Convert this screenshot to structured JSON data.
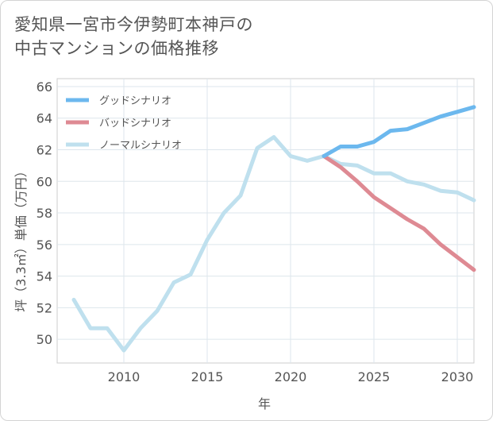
{
  "title_lines": [
    "愛知県一宮市今伊勢町本神戸の",
    "中古マンションの価格推移"
  ],
  "chart_data": {
    "type": "line",
    "xlabel": "年",
    "ylabel": "坪（3.3㎡）単価（万円）",
    "xlim": [
      2006,
      2031
    ],
    "ylim": [
      48.5,
      66.5
    ],
    "x_ticks": [
      2010,
      2015,
      2020,
      2025,
      2030
    ],
    "y_ticks": [
      50,
      52,
      54,
      56,
      58,
      60,
      62,
      64,
      66
    ],
    "grid": true,
    "legend_position": "top-left",
    "series": [
      {
        "name": "グッドシナリオ",
        "color": "#6cb8ee",
        "x": [
          2022,
          2023,
          2024,
          2025,
          2026,
          2027,
          2028,
          2029,
          2030,
          2031
        ],
        "y": [
          61.6,
          62.2,
          62.2,
          62.5,
          63.2,
          63.3,
          63.7,
          64.1,
          64.4,
          64.7
        ]
      },
      {
        "name": "バッドシナリオ",
        "color": "#de8a93",
        "x": [
          2022,
          2023,
          2024,
          2025,
          2026,
          2027,
          2028,
          2029,
          2030,
          2031
        ],
        "y": [
          61.6,
          60.9,
          60.0,
          59.0,
          58.3,
          57.6,
          57.0,
          56.0,
          55.2,
          54.4
        ]
      },
      {
        "name": "ノーマルシナリオ",
        "color": "#bfe0ee",
        "x": [
          2007,
          2008,
          2009,
          2010,
          2011,
          2012,
          2013,
          2014,
          2015,
          2016,
          2017,
          2018,
          2019,
          2020,
          2021,
          2022,
          2023,
          2024,
          2025,
          2026,
          2027,
          2028,
          2029,
          2030,
          2031
        ],
        "y": [
          52.5,
          50.7,
          50.7,
          49.3,
          50.7,
          51.8,
          53.6,
          54.1,
          56.3,
          58.0,
          59.1,
          62.1,
          62.8,
          61.6,
          61.3,
          61.6,
          61.1,
          61.0,
          60.5,
          60.5,
          60.0,
          59.8,
          59.4,
          59.3,
          58.8
        ]
      }
    ]
  }
}
